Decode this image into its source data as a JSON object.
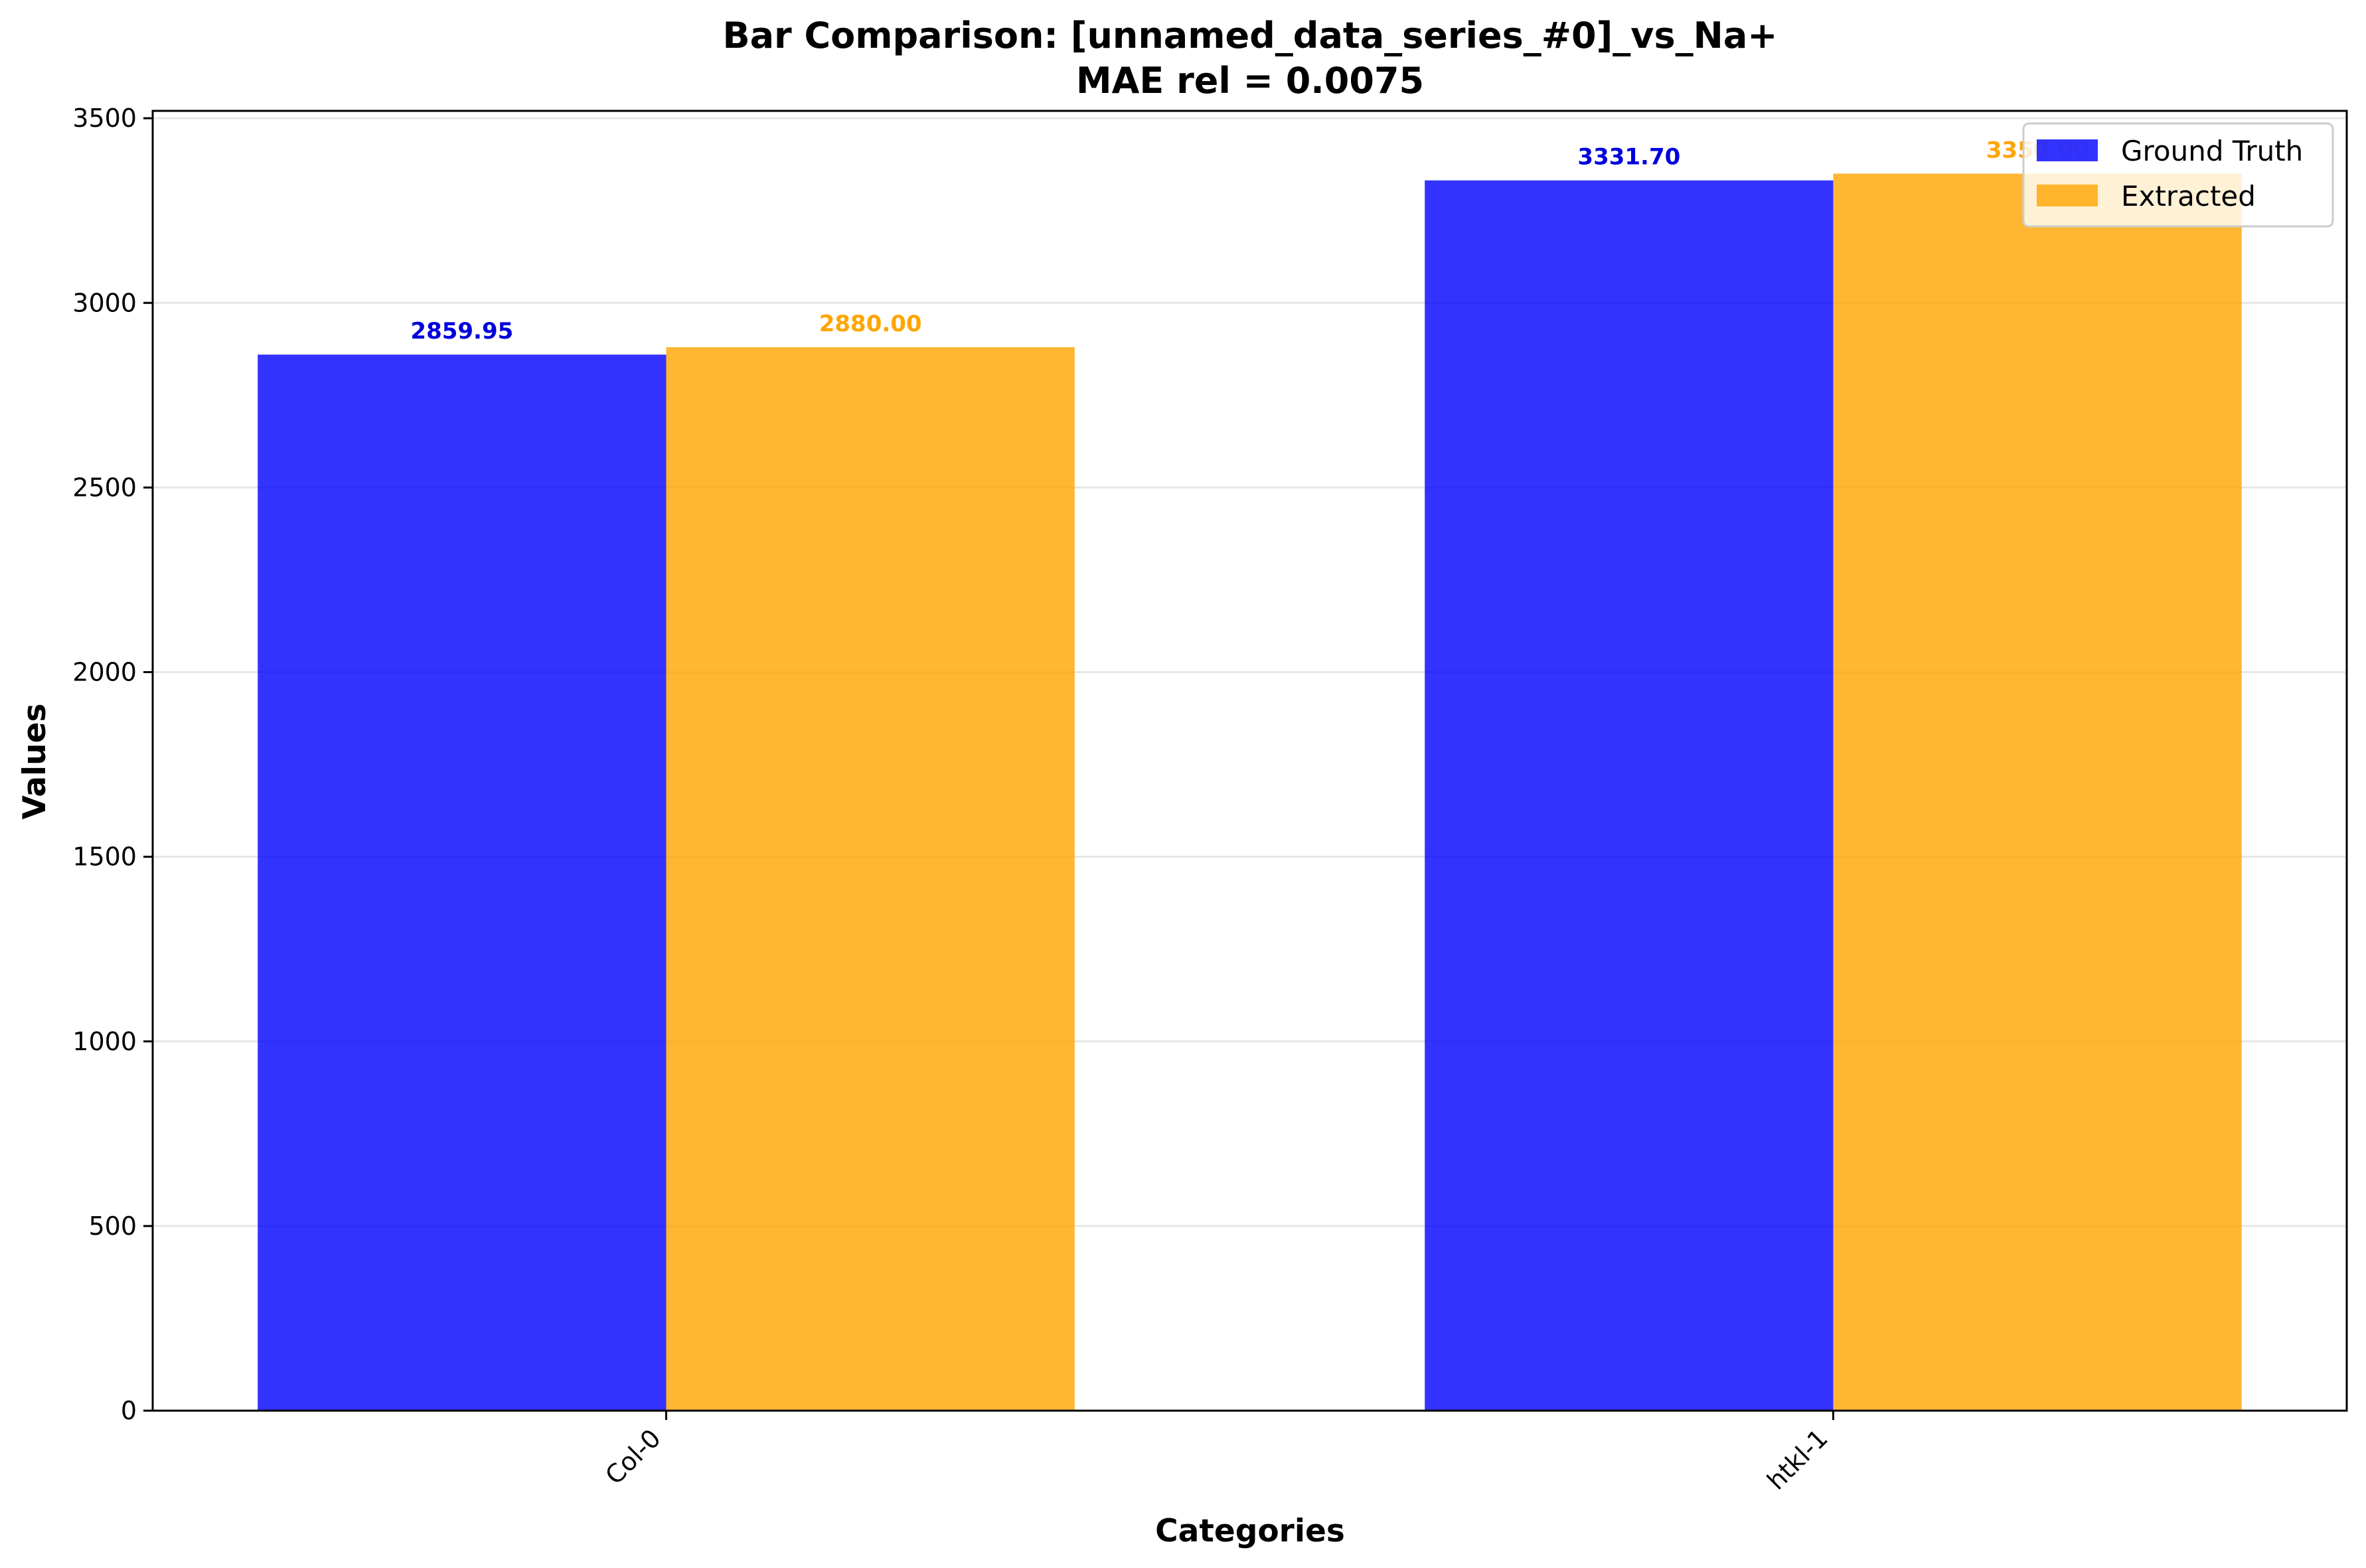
{
  "chart_data": {
    "type": "bar",
    "title": "Bar Comparison: [unnamed_data_series_#0]_vs_Na+",
    "subtitle": "MAE rel = 0.0075",
    "xlabel": "Categories",
    "ylabel": "Values",
    "categories": [
      "Col-0",
      "htkl-1"
    ],
    "series": [
      {
        "name": "Ground Truth",
        "values": [
          2859.95,
          3331.7
        ],
        "labels": [
          "2859.95",
          "3331.70"
        ],
        "color": "#0000ff",
        "label_color": "#0000dd"
      },
      {
        "name": "Extracted",
        "values": [
          2880.0,
          3350.0
        ],
        "labels": [
          "2880.00",
          "3350.00"
        ],
        "color": "#ffa500",
        "label_color": "#ffa500"
      }
    ],
    "ylim": [
      0,
      3520
    ],
    "yticks": [
      0,
      500,
      1000,
      1500,
      2000,
      2500,
      3000,
      3500
    ],
    "grid": true,
    "legend_position": "top-right"
  }
}
